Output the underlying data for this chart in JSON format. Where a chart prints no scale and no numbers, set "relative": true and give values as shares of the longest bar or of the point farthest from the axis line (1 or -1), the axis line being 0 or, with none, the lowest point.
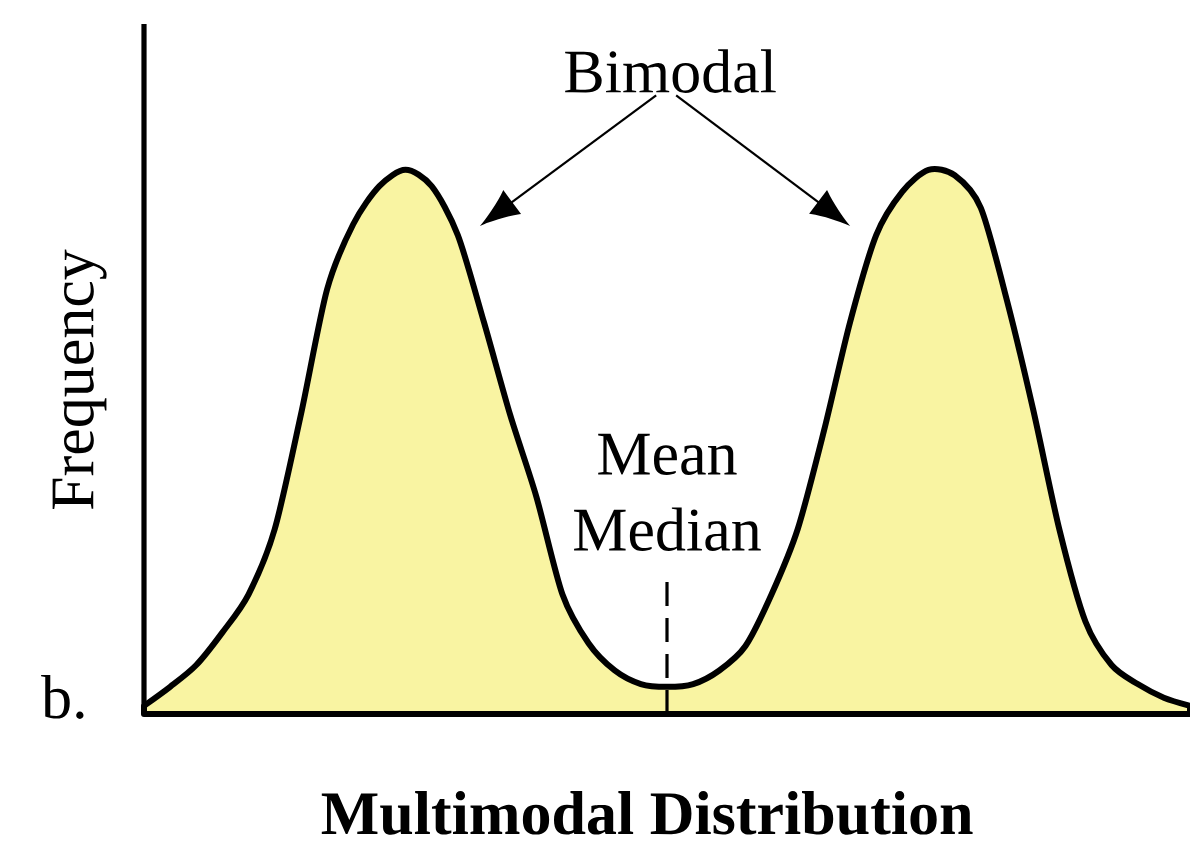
{
  "chart_data": {
    "type": "area",
    "relative": true,
    "xlabel": "Multimodal Distribution",
    "ylabel": "Frequency",
    "categories": [
      null,
      null,
      null,
      null,
      null,
      null,
      null,
      null,
      null,
      null,
      null,
      null,
      null,
      null,
      null,
      null,
      null,
      null,
      null,
      null,
      null,
      null,
      null,
      null,
      null,
      null,
      null,
      null,
      null,
      null,
      null,
      null,
      null,
      null,
      null,
      null,
      null,
      null,
      null,
      null,
      null
    ],
    "series": [
      {
        "color": "#f9f4a2",
        "values": [
          0.015,
          0.05,
          0.09,
          0.15,
          0.22,
          0.34,
          0.55,
          0.78,
          0.9,
          0.97,
          1.0,
          0.97,
          0.88,
          0.72,
          0.55,
          0.4,
          0.22,
          0.13,
          0.08,
          0.055,
          0.05,
          0.055,
          0.08,
          0.125,
          0.22,
          0.34,
          0.52,
          0.72,
          0.88,
          0.96,
          1.0,
          0.99,
          0.93,
          0.76,
          0.56,
          0.34,
          0.17,
          0.09,
          0.055,
          0.03,
          0.015
        ]
      }
    ],
    "annotations": [
      "Bimodal",
      "Mean Median",
      "b."
    ]
  }
}
